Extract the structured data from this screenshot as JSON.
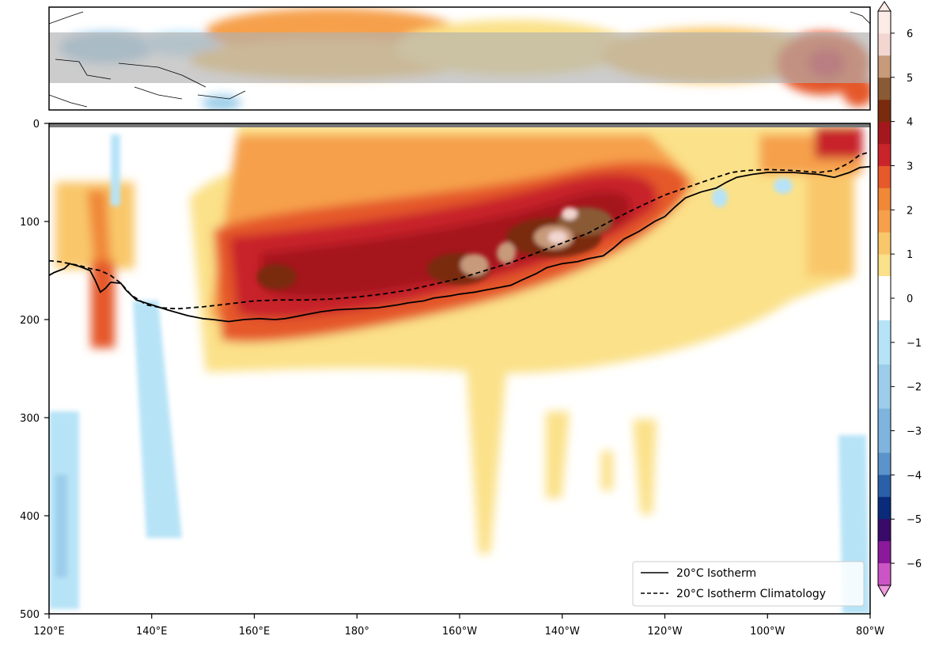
{
  "chart_data": {
    "type": "heatmap",
    "title": "",
    "xlabel": "",
    "ylabel": "",
    "x_ticks": [
      "120°E",
      "140°E",
      "160°E",
      "180°",
      "160°W",
      "140°W",
      "120°W",
      "100°W",
      "80°W"
    ],
    "y_ticks": [
      "0",
      "100",
      "200",
      "300",
      "400",
      "500"
    ],
    "xlim": [
      120,
      280
    ],
    "ylim": [
      0,
      500
    ],
    "y_inverted": true,
    "colorbar": {
      "ticks": [
        "6",
        "5",
        "4",
        "3",
        "2",
        "1",
        "0",
        "−1",
        "−2",
        "−3",
        "−4",
        "−5",
        "−6"
      ],
      "range": [
        -6.5,
        6.5
      ],
      "extend": "both"
    },
    "series": [
      {
        "name": "20°C Isotherm",
        "style": "solid",
        "color": "#000000",
        "points": [
          [
            120,
            155
          ],
          [
            121,
            152
          ],
          [
            123,
            148
          ],
          [
            124,
            143
          ],
          [
            126,
            146
          ],
          [
            128,
            150
          ],
          [
            129,
            160
          ],
          [
            130,
            172
          ],
          [
            131,
            168
          ],
          [
            132,
            162
          ],
          [
            134,
            163
          ],
          [
            135,
            170
          ],
          [
            137,
            180
          ],
          [
            140,
            185
          ],
          [
            143,
            190
          ],
          [
            147,
            196
          ],
          [
            150,
            199
          ],
          [
            152,
            200
          ],
          [
            155,
            202
          ],
          [
            158,
            200
          ],
          [
            161,
            199
          ],
          [
            164,
            200
          ],
          [
            166,
            199
          ],
          [
            170,
            195
          ],
          [
            173,
            192
          ],
          [
            176,
            190
          ],
          [
            180,
            189
          ],
          [
            184,
            188
          ],
          [
            188,
            185
          ],
          [
            190,
            183
          ],
          [
            193,
            181
          ],
          [
            195,
            178
          ],
          [
            198,
            176
          ],
          [
            200,
            174
          ],
          [
            203,
            172
          ],
          [
            205,
            170
          ],
          [
            208,
            167
          ],
          [
            210,
            165
          ],
          [
            212,
            160
          ],
          [
            215,
            153
          ],
          [
            217,
            147
          ],
          [
            220,
            143
          ],
          [
            223,
            141
          ],
          [
            225,
            138
          ],
          [
            228,
            135
          ],
          [
            230,
            127
          ],
          [
            232,
            118
          ],
          [
            235,
            110
          ],
          [
            238,
            100
          ],
          [
            240,
            95
          ],
          [
            242,
            85
          ],
          [
            244,
            76
          ],
          [
            247,
            70
          ],
          [
            250,
            66
          ],
          [
            252,
            60
          ],
          [
            254,
            55
          ],
          [
            257,
            52
          ],
          [
            260,
            50
          ],
          [
            265,
            50
          ],
          [
            270,
            52
          ],
          [
            273,
            55
          ],
          [
            276,
            50
          ],
          [
            278,
            45
          ],
          [
            280,
            44
          ]
        ]
      },
      {
        "name": "20°C Isotherm Climatology",
        "style": "dashed",
        "color": "#000000",
        "points": [
          [
            120,
            140
          ],
          [
            122,
            141
          ],
          [
            124,
            143
          ],
          [
            126,
            145
          ],
          [
            128,
            148
          ],
          [
            130,
            150
          ],
          [
            132,
            155
          ],
          [
            134,
            163
          ],
          [
            136,
            175
          ],
          [
            139,
            185
          ],
          [
            142,
            188
          ],
          [
            145,
            189
          ],
          [
            150,
            187
          ],
          [
            155,
            184
          ],
          [
            160,
            181
          ],
          [
            165,
            180
          ],
          [
            170,
            180
          ],
          [
            175,
            179
          ],
          [
            180,
            177
          ],
          [
            185,
            174
          ],
          [
            190,
            170
          ],
          [
            195,
            164
          ],
          [
            200,
            158
          ],
          [
            205,
            150
          ],
          [
            210,
            142
          ],
          [
            215,
            132
          ],
          [
            220,
            122
          ],
          [
            225,
            112
          ],
          [
            230,
            98
          ],
          [
            235,
            85
          ],
          [
            240,
            73
          ],
          [
            245,
            64
          ],
          [
            250,
            55
          ],
          [
            253,
            50
          ],
          [
            256,
            48
          ],
          [
            260,
            47
          ],
          [
            265,
            48
          ],
          [
            270,
            50
          ],
          [
            273,
            48
          ],
          [
            276,
            40
          ],
          [
            278,
            32
          ],
          [
            280,
            29
          ]
        ]
      }
    ],
    "legend": {
      "position": "bottom-right",
      "entries": [
        "20°C Isotherm",
        "20°C Isotherm Climatology"
      ]
    },
    "inset_map": {
      "description_shown": "equatorial Pacific SST anomaly map with grey averaging band",
      "band_lat": "equatorial"
    },
    "anomaly_field": {
      "units": "°C",
      "max_anomaly": 6,
      "min_anomaly": -1.5
    }
  },
  "colors": {
    "warm": [
      "#fbe189",
      "#f9c76b",
      "#f6a04b",
      "#f08838",
      "#e5592a",
      "#c8242a",
      "#a4181d",
      "#7a2b0e",
      "#8a5a34",
      "#c79a7a",
      "#f2d6cf",
      "#fcebe6"
    ],
    "cool": [
      "#b7e3f7",
      "#9ccdea",
      "#7fb4de",
      "#5a94ca",
      "#2b5fa8",
      "#0a2b7a",
      "#3a0a6a",
      "#8a1a9a",
      "#cc55c5",
      "#f099df"
    ],
    "axis": "#000000"
  }
}
